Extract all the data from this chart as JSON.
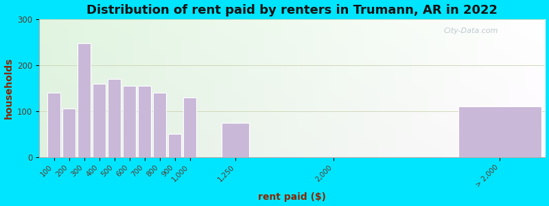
{
  "title": "Distribution of rent paid by renters in Trumann, AR in 2022",
  "xlabel": "rent paid ($)",
  "ylabel": "households",
  "bar_color": "#c9b8d8",
  "bar_edgecolor": "#ffffff",
  "background_outer": "#00e5ff",
  "ylim": [
    0,
    300
  ],
  "yticks": [
    0,
    100,
    200,
    300
  ],
  "tick_labels": [
    "100",
    "200",
    "300",
    "400",
    "500",
    "600",
    "700",
    "800",
    "900",
    "1,000",
    "1,250",
    "2,000",
    "> 2,000"
  ],
  "values": [
    140,
    105,
    248,
    160,
    170,
    155,
    155,
    140,
    50,
    130,
    75,
    0,
    110
  ],
  "x_positions": [
    100,
    200,
    300,
    400,
    500,
    600,
    700,
    800,
    900,
    1000,
    1250,
    2000,
    2800
  ],
  "bar_widths": [
    95,
    95,
    95,
    95,
    95,
    95,
    95,
    95,
    95,
    95,
    200,
    0,
    600
  ],
  "watermark": "City-Data.com",
  "title_fontsize": 13,
  "axis_label_color": "#8b2500",
  "tick_label_color": "#5a3a2a",
  "grid_color": "#d0d8b8",
  "xlim": [
    50,
    3400
  ]
}
